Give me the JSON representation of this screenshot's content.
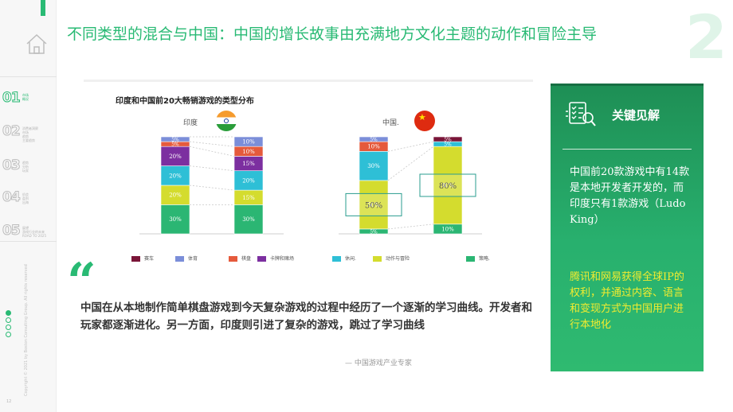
{
  "header": {
    "title": "不同类型的混合与中国：中国的增长故事由充满地方文化主题的动作和冒险主导",
    "section_number": "2"
  },
  "sidebar": {
    "items": [
      {
        "num": "01",
        "sub": [
          "市场",
          "概况"
        ],
        "active": true
      },
      {
        "num": "02",
        "sub": [
          "消费者洞察",
          "市场",
          "趋势",
          "主要趋势"
        ],
        "active": false
      },
      {
        "num": "03",
        "sub": [
          "趋势",
          "分析",
          "玩家"
        ],
        "active": false
      },
      {
        "num": "04",
        "sub": [
          "机会",
          "盈利",
          "出海"
        ],
        "active": false
      },
      {
        "num": "05",
        "sub": [
          "展望",
          "游戏行业的未来",
          "ROAD TO 2025"
        ],
        "active": false
      }
    ],
    "copyright": "Copyright © 2021 by Boston Consulting Group. All rights reserved",
    "page_number": "12"
  },
  "chart": {
    "title": "印度和中国前20大畅销游戏的类型分布",
    "countries": [
      "印度",
      "中国."
    ],
    "legend": [
      {
        "label": "赛车",
        "color": "#7a1538"
      },
      {
        "label": "体育",
        "color": "#7b8ed9"
      },
      {
        "label": "棋盘",
        "color": "#e55a3c"
      },
      {
        "label": "卡牌和赌场",
        "color": "#7c2fa0"
      },
      {
        "label": "休闲.",
        "color": "#2ebfd6"
      },
      {
        "label": "动作与冒险",
        "color": "#d4dc2e"
      },
      {
        "label": "策略.",
        "color": "#2bb673"
      }
    ]
  },
  "chart_data": {
    "type": "bar",
    "stacked": true,
    "title": "印度和中国前20大畅销游戏的类型分布",
    "groups": [
      {
        "country": "印度",
        "bars": [
          {
            "segments": [
              {
                "genre": "策略.",
                "value": 30,
                "label": "30%"
              },
              {
                "genre": "动作与冒险",
                "value": 20,
                "label": "20%"
              },
              {
                "genre": "休闲.",
                "value": 20,
                "label": "20%"
              },
              {
                "genre": "卡牌和赌场",
                "value": 20,
                "label": "20%"
              },
              {
                "genre": "棋盘",
                "value": 5,
                "label": "5%"
              },
              {
                "genre": "体育",
                "value": 5,
                "label": "5%"
              }
            ]
          },
          {
            "segments": [
              {
                "genre": "策略.",
                "value": 30,
                "label": "30%"
              },
              {
                "genre": "动作与冒险",
                "value": 15,
                "label": "15%"
              },
              {
                "genre": "休闲.",
                "value": 20,
                "label": "20%"
              },
              {
                "genre": "卡牌和赌场",
                "value": 15,
                "label": "15%"
              },
              {
                "genre": "棋盘",
                "value": 10,
                "label": "10%"
              },
              {
                "genre": "体育",
                "value": 10,
                "label": "10%"
              }
            ]
          }
        ]
      },
      {
        "country": "中国.",
        "bars": [
          {
            "segments": [
              {
                "genre": "策略.",
                "value": 5,
                "label": "5%"
              },
              {
                "genre": "动作与冒险",
                "value": 50,
                "label": "50%"
              },
              {
                "genre": "休闲.",
                "value": 30,
                "label": "30%"
              },
              {
                "genre": "棋盘",
                "value": 10,
                "label": "10%"
              },
              {
                "genre": "体育",
                "value": 5,
                "label": "5%"
              }
            ]
          },
          {
            "segments": [
              {
                "genre": "策略.",
                "value": 10,
                "label": "10%"
              },
              {
                "genre": "动作与冒险",
                "value": 80,
                "label": "80%"
              },
              {
                "genre": "休闲.",
                "value": 5,
                "label": "5%"
              },
              {
                "genre": "赛车",
                "value": 5,
                "label": "5%"
              }
            ]
          }
        ]
      }
    ],
    "highlights": [
      {
        "group": 1,
        "bar": 0,
        "genre": "动作与冒险",
        "label": "50%"
      },
      {
        "group": 1,
        "bar": 1,
        "genre": "动作与冒险",
        "label": "80%"
      }
    ]
  },
  "quote": {
    "mark": "“",
    "text": "中国在从本地制作简单棋盘游戏到今天复杂游戏的过程中经历了一个逐渐的学习曲线。开发者和玩家都逐渐进化。另一方面，印度则引进了复杂的游戏，跳过了学习曲线",
    "source": "— 中国游戏产业专家"
  },
  "insight": {
    "heading": "关键见解",
    "p1": "中国前20款游戏中有14款是本地开发者开发的，而印度只有1款游戏（LudoKing）",
    "p2": "腾讯和网易获得全球IP的权利，并通过内容、语言和变现方式为中国用户进行本地化"
  }
}
